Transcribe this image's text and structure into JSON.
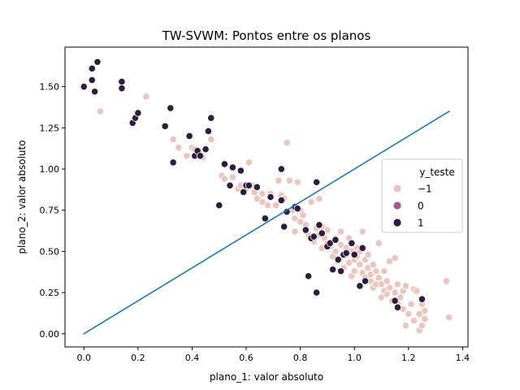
{
  "chart_data": {
    "type": "scatter",
    "title": "TW-SVWM: Pontos entre os planos",
    "xlabel": "plano_1: valor absoluto",
    "ylabel": "plano_2: valor absoluto",
    "xlim": [
      -0.07,
      1.42
    ],
    "ylim": [
      -0.08,
      1.74
    ],
    "xticks": [
      "0.0",
      "0.2",
      "0.4",
      "0.6",
      "0.8",
      "1.0",
      "1.2",
      "1.4"
    ],
    "yticks": [
      "0.00",
      "0.25",
      "0.50",
      "0.75",
      "1.00",
      "1.25",
      "1.50"
    ],
    "grid": false,
    "legend": {
      "title": "y_teste",
      "placement": "center-right",
      "entries": [
        {
          "label": "−1",
          "color": "#ebc6c0"
        },
        {
          "label": "0",
          "color": "#a55c87"
        },
        {
          "label": "1",
          "color": "#2d1e3e"
        }
      ]
    },
    "line": {
      "color": "#1f77b4",
      "x": [
        0.0,
        1.35
      ],
      "y": [
        0.0,
        1.35
      ]
    },
    "series": [
      {
        "name": "−1",
        "color": "#ebc6c0",
        "points": [
          [
            0.06,
            1.35
          ],
          [
            0.23,
            1.44
          ],
          [
            0.33,
            1.18
          ],
          [
            0.35,
            1.13
          ],
          [
            0.38,
            1.08
          ],
          [
            0.4,
            1.13
          ],
          [
            0.41,
            1.12
          ],
          [
            0.42,
            1.1
          ],
          [
            0.44,
            1.07
          ],
          [
            0.47,
            1.18
          ],
          [
            0.51,
            0.96
          ],
          [
            0.52,
            0.94
          ],
          [
            0.55,
            0.95
          ],
          [
            0.57,
            0.88
          ],
          [
            0.58,
            0.9
          ],
          [
            0.6,
            0.88
          ],
          [
            0.61,
            1.04
          ],
          [
            0.62,
            0.9
          ],
          [
            0.63,
            0.86
          ],
          [
            0.64,
            0.82
          ],
          [
            0.66,
            0.8
          ],
          [
            0.66,
            0.85
          ],
          [
            0.68,
            0.78
          ],
          [
            0.69,
            0.85
          ],
          [
            0.71,
            0.78
          ],
          [
            0.72,
            0.93
          ],
          [
            0.73,
            0.84
          ],
          [
            0.74,
            0.82
          ],
          [
            0.75,
            1.16
          ],
          [
            0.76,
            0.93
          ],
          [
            0.77,
            0.75
          ],
          [
            0.78,
            0.7
          ],
          [
            0.78,
            0.62
          ],
          [
            0.79,
            0.92
          ],
          [
            0.8,
            0.75
          ],
          [
            0.8,
            0.68
          ],
          [
            0.81,
            0.72
          ],
          [
            0.82,
            0.66
          ],
          [
            0.83,
            0.6
          ],
          [
            0.84,
            0.8
          ],
          [
            0.85,
            0.56
          ],
          [
            0.86,
            0.64
          ],
          [
            0.87,
            0.82
          ],
          [
            0.87,
            0.6
          ],
          [
            0.88,
            0.65
          ],
          [
            0.88,
            0.52
          ],
          [
            0.89,
            0.58
          ],
          [
            0.9,
            0.55
          ],
          [
            0.9,
            0.63
          ],
          [
            0.91,
            0.53
          ],
          [
            0.92,
            0.47
          ],
          [
            0.93,
            0.5
          ],
          [
            0.93,
            0.58
          ],
          [
            0.94,
            0.44
          ],
          [
            0.95,
            0.54
          ],
          [
            0.95,
            0.62
          ],
          [
            0.96,
            0.4
          ],
          [
            0.97,
            0.48
          ],
          [
            0.97,
            0.52
          ],
          [
            0.98,
            0.58
          ],
          [
            0.98,
            0.43
          ],
          [
            0.99,
            0.35
          ],
          [
            0.99,
            0.5
          ],
          [
            1.0,
            0.45
          ],
          [
            1.0,
            0.38
          ],
          [
            1.01,
            0.52
          ],
          [
            1.01,
            0.47
          ],
          [
            1.02,
            0.42
          ],
          [
            1.02,
            0.5
          ],
          [
            1.03,
            0.37
          ],
          [
            1.03,
            0.62
          ],
          [
            1.04,
            0.45
          ],
          [
            1.04,
            0.34
          ],
          [
            1.05,
            0.4
          ],
          [
            1.05,
            0.48
          ],
          [
            1.06,
            0.32
          ],
          [
            1.06,
            0.36
          ],
          [
            1.07,
            0.42
          ],
          [
            1.07,
            0.28
          ],
          [
            1.08,
            0.38
          ],
          [
            1.08,
            0.3
          ],
          [
            1.09,
            0.34
          ],
          [
            1.09,
            0.55
          ],
          [
            1.1,
            0.3
          ],
          [
            1.1,
            0.22
          ],
          [
            1.11,
            0.38
          ],
          [
            1.11,
            0.26
          ],
          [
            1.12,
            0.32
          ],
          [
            1.12,
            0.24
          ],
          [
            1.13,
            0.28
          ],
          [
            1.13,
            0.44
          ],
          [
            1.14,
            0.2
          ],
          [
            1.15,
            0.46
          ],
          [
            1.15,
            0.25
          ],
          [
            1.16,
            0.3
          ],
          [
            1.16,
            0.18
          ],
          [
            1.17,
            0.22
          ],
          [
            1.18,
            0.15
          ],
          [
            1.18,
            0.26
          ],
          [
            1.19,
            0.05
          ],
          [
            1.19,
            0.29
          ],
          [
            1.2,
            0.12
          ],
          [
            1.21,
            0.18
          ],
          [
            1.22,
            0.08
          ],
          [
            1.22,
            0.27
          ],
          [
            1.23,
            0.26
          ],
          [
            1.24,
            0.12
          ],
          [
            1.24,
            0.02
          ],
          [
            1.25,
            0.05
          ],
          [
            1.25,
            0.18
          ],
          [
            1.26,
            0.14
          ],
          [
            1.26,
            0.09
          ],
          [
            1.34,
            0.32
          ],
          [
            1.35,
            0.1
          ]
        ]
      },
      {
        "name": "1",
        "color": "#2d1e3e",
        "points": [
          [
            0.0,
            1.5
          ],
          [
            0.03,
            1.54
          ],
          [
            0.03,
            1.61
          ],
          [
            0.04,
            1.47
          ],
          [
            0.05,
            1.65
          ],
          [
            0.14,
            1.53
          ],
          [
            0.14,
            1.49
          ],
          [
            0.18,
            1.28
          ],
          [
            0.19,
            1.31
          ],
          [
            0.2,
            1.34
          ],
          [
            0.3,
            1.26
          ],
          [
            0.32,
            1.37
          ],
          [
            0.33,
            1.04
          ],
          [
            0.39,
            1.2
          ],
          [
            0.41,
            1.08
          ],
          [
            0.42,
            1.11
          ],
          [
            0.43,
            1.08
          ],
          [
            0.45,
            1.12
          ],
          [
            0.46,
            1.23
          ],
          [
            0.47,
            1.31
          ],
          [
            0.5,
            0.78
          ],
          [
            0.52,
            1.03
          ],
          [
            0.54,
            0.9
          ],
          [
            0.55,
            1.01
          ],
          [
            0.58,
            0.99
          ],
          [
            0.59,
            0.86
          ],
          [
            0.6,
            0.9
          ],
          [
            0.61,
            0.9
          ],
          [
            0.64,
            0.89
          ],
          [
            0.67,
            0.7
          ],
          [
            0.69,
            0.83
          ],
          [
            0.73,
            1.0
          ],
          [
            0.73,
            0.81
          ],
          [
            0.74,
            0.65
          ],
          [
            0.75,
            0.74
          ],
          [
            0.78,
            0.77
          ],
          [
            0.79,
            0.76
          ],
          [
            0.82,
            0.63
          ],
          [
            0.83,
            0.35
          ],
          [
            0.84,
            0.58
          ],
          [
            0.85,
            0.59
          ],
          [
            0.86,
            0.25
          ],
          [
            0.86,
            0.92
          ],
          [
            0.87,
            0.66
          ],
          [
            0.88,
            0.61
          ],
          [
            0.9,
            0.53
          ],
          [
            0.91,
            0.55
          ],
          [
            0.92,
            0.39
          ],
          [
            0.93,
            0.57
          ],
          [
            0.94,
            0.45
          ],
          [
            0.95,
            0.38
          ],
          [
            0.96,
            0.48
          ],
          [
            0.97,
            0.49
          ],
          [
            0.99,
            0.55
          ],
          [
            1.0,
            0.48
          ],
          [
            1.02,
            0.29
          ],
          [
            1.03,
            0.52
          ],
          [
            1.04,
            0.32
          ],
          [
            1.15,
            0.2
          ],
          [
            1.16,
            0.16
          ],
          [
            1.25,
            0.21
          ]
        ]
      }
    ]
  }
}
